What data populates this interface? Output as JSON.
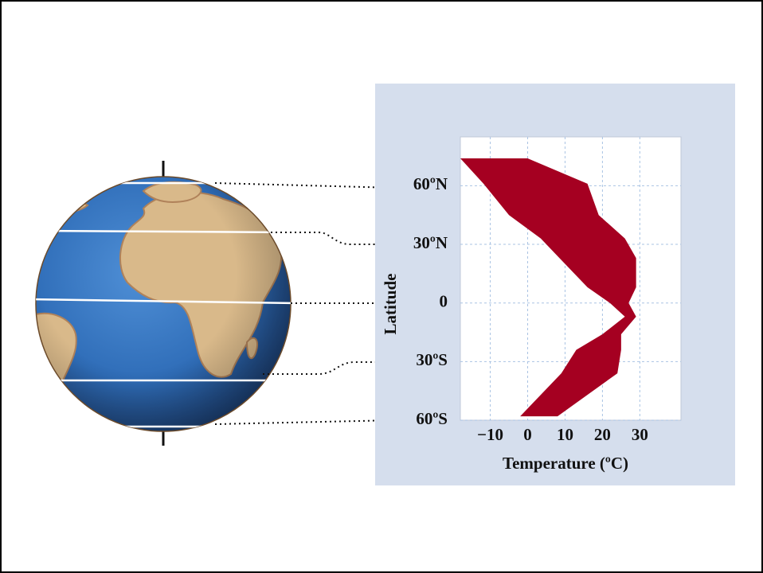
{
  "chart_data": {
    "type": "area",
    "x_label": "Temperature (ºC)",
    "y_label": "Latitude",
    "color": "#a50021",
    "y": [
      74,
      61,
      45,
      33,
      23,
      8,
      0,
      -7,
      -16,
      -24,
      -36,
      -58
    ],
    "series": [
      {
        "values": [
          -18,
          -11.8,
          -5,
          3.5,
          8.5,
          16,
          22,
          26,
          20,
          13,
          9,
          -2
        ]
      },
      {
        "values": [
          0,
          16,
          19,
          26,
          29,
          29,
          27,
          29,
          25,
          25,
          24,
          8
        ]
      }
    ],
    "xlim": [
      -18,
      41
    ],
    "ylim": [
      -60,
      85
    ],
    "xticks": [
      {
        "value": -10,
        "label": "−10"
      },
      0,
      10,
      20,
      30
    ],
    "yticks": [
      {
        "value": 60,
        "label": "60ºN"
      },
      {
        "value": 30,
        "label": "30ºN"
      },
      0,
      {
        "value": -30,
        "label": "30ºS"
      },
      {
        "value": -60,
        "label": "60ºS"
      }
    ],
    "grid": true
  }
}
